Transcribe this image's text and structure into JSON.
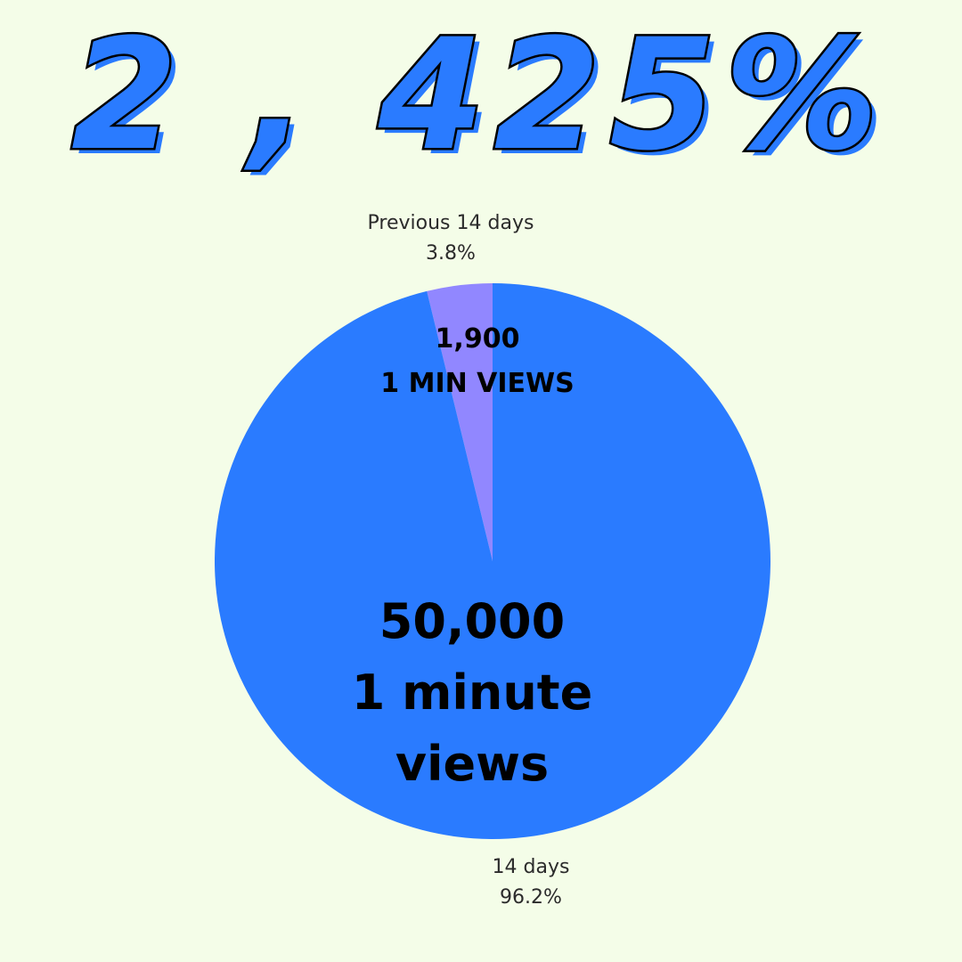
{
  "headline": {
    "text": "2 , 425%",
    "fill_color": "#2a7bff",
    "outline_color": "#000000",
    "highlight_color": "#ffffff"
  },
  "annotations": {
    "small_value": "1,900",
    "small_caption": "1 MIN VIEWS",
    "big_value": "50,000",
    "big_caption_line1": "1 minute",
    "big_caption_line2": "views"
  },
  "chart_data": {
    "type": "pie",
    "slices": [
      {
        "name": "Previous 14 days",
        "percent_label": "3.8%",
        "value": 3.8,
        "color": "#9187ff"
      },
      {
        "name": "14 days",
        "percent_label": "96.2%",
        "value": 96.2,
        "color": "#2a7bff"
      }
    ],
    "start_angle": "12 o'clock, clockwise"
  },
  "colors": {
    "background": "#f4fde8",
    "label_text": "#2b2b2b",
    "annotation_text": "#000000"
  }
}
